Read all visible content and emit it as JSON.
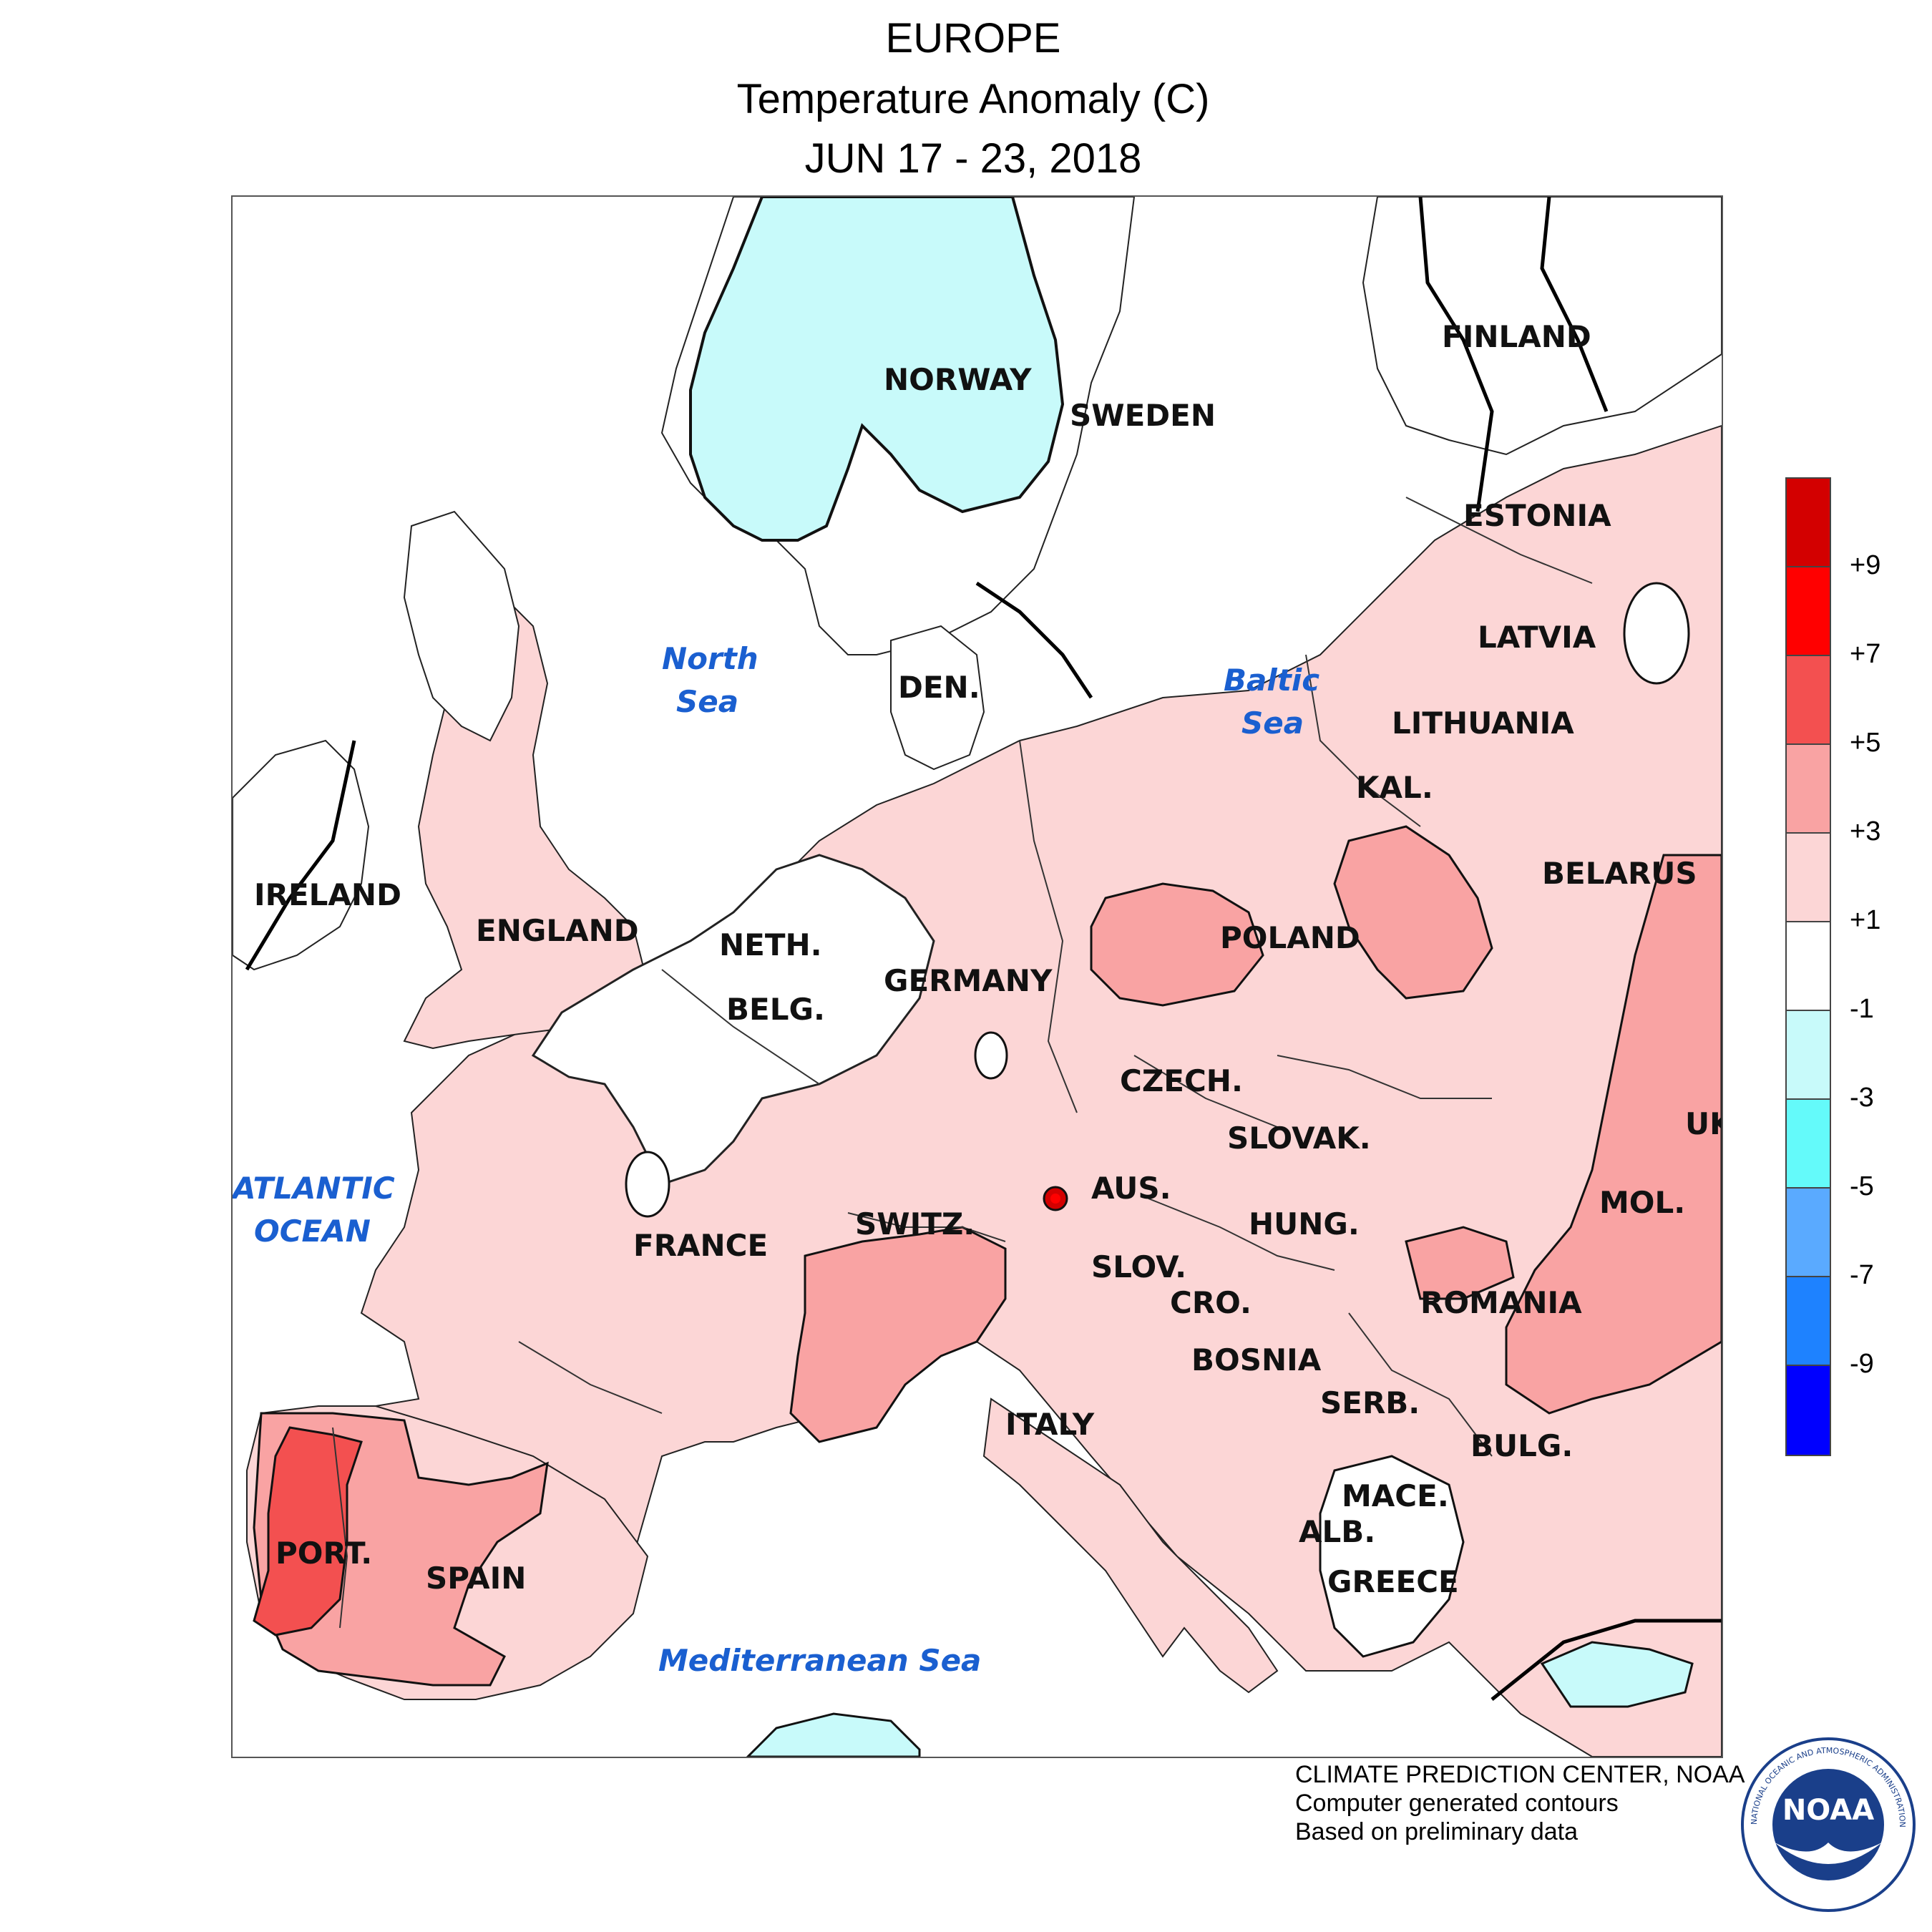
{
  "title": {
    "line1": "EUROPE",
    "line2": "Temperature Anomaly (C)",
    "line3": "JUN 17 - 23, 2018"
  },
  "map": {
    "countries": [
      "NORWAY",
      "SWEDEN",
      "FINLAND",
      "ESTONIA",
      "LATVIA",
      "LITHUANIA",
      "KAL.",
      "BELARUS",
      "IRELAND",
      "ENGLAND",
      "NETH.",
      "BELG.",
      "DEN.",
      "GERMANY",
      "POLAND",
      "CZECH.",
      "SLOVAK.",
      "UK",
      "MOL.",
      "AUS.",
      "HUNG.",
      "SWITZ.",
      "FRANCE",
      "SLOV.",
      "CRO.",
      "ROMANIA",
      "BOSNIA",
      "SERB.",
      "BULG.",
      "ITALY",
      "MACE.",
      "ALB.",
      "GREECE",
      "PORT.",
      "SPAIN"
    ],
    "seas": {
      "north_sea_1": "North",
      "north_sea_2": "Sea",
      "baltic_1": "Baltic",
      "baltic_2": "Sea",
      "atlantic_1": "ATLANTIC",
      "atlantic_2": "OCEAN",
      "mediterranean": "Mediterranean Sea"
    },
    "anomaly_colors": {
      "plus1_to_plus3": "#fcd6d6",
      "plus3_to_plus5": "#f9a3a3",
      "plus5_to_plus7": "#f35050",
      "minus1_to_minus3": "#c8fafa",
      "neutral": "#ffffff"
    }
  },
  "legend": {
    "bins": [
      {
        "color": "#d30000"
      },
      {
        "color": "#ff0000"
      },
      {
        "color": "#f35050"
      },
      {
        "color": "#f9a3a3"
      },
      {
        "color": "#fcd6d6"
      },
      {
        "color": "#ffffff"
      },
      {
        "color": "#c8fafa"
      },
      {
        "color": "#64fafa"
      },
      {
        "color": "#5aaaff"
      },
      {
        "color": "#1e82ff"
      },
      {
        "color": "#0000ff"
      }
    ],
    "labels": [
      "+9",
      "+7",
      "+5",
      "+3",
      "+1",
      "-1",
      "-3",
      "-5",
      "-7",
      "-9"
    ]
  },
  "credits": {
    "line1": "CLIMATE PREDICTION CENTER, NOAA",
    "line2": "Computer generated contours",
    "line3": "Based on preliminary data"
  },
  "logo": {
    "text": "NOAA",
    "ring_text": "NATIONAL OCEANIC AND ATMOSPHERIC ADMINISTRATION"
  }
}
